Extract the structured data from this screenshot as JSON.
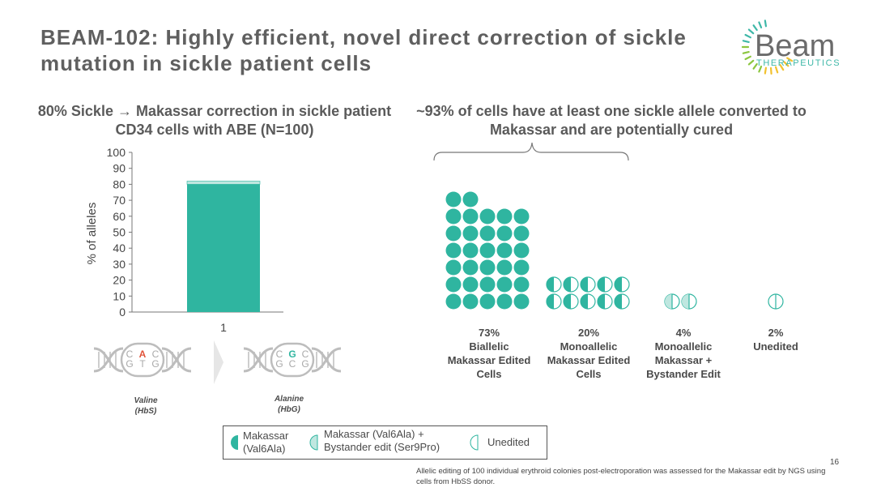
{
  "slide": {
    "title": "BEAM-102: Highly efficient, novel direct correction of sickle mutation in sickle patient cells",
    "page_number": "16",
    "footnote": "Allelic editing of 100 individual erythroid colonies post-electroporation was assessed for the Makassar edit by NGS using cells from HbSS donor."
  },
  "logo": {
    "word": "Beam",
    "sub": "THERAPEUTICS"
  },
  "left_panel": {
    "subtitle": "80% Sickle → Makassar correction in sickle patient CD34 cells with ABE (N=100)"
  },
  "right_panel": {
    "subtitle": "~93% of cells have at least one sickle allele converted to Makassar and are potentially cured"
  },
  "chart_data": [
    {
      "type": "bar",
      "categories": [
        "1"
      ],
      "series": [
        {
          "values": [
            80
          ]
        },
        {
          "values": [
            2
          ]
        }
      ],
      "ylabel": "% of alleles",
      "ylim": [
        0,
        100
      ],
      "yticks": [
        "0",
        "10",
        "20",
        "30",
        "40",
        "50",
        "60",
        "70",
        "80",
        "90",
        "100"
      ],
      "colors": [
        "#2fb5a0",
        "#bfe7e0"
      ]
    },
    {
      "type": "waffle",
      "groups": [
        {
          "pct": "73%",
          "label": "Biallelic Makassar Edited Cells",
          "count": 32,
          "marker": "full"
        },
        {
          "pct": "20%",
          "label": "Monoallelic Makassar Edited Cells",
          "count": 10,
          "marker": "half"
        },
        {
          "pct": "4%",
          "label": "Monoallelic Makassar + Bystander Edit",
          "count": 2,
          "marker": "bystander"
        },
        {
          "pct": "2%",
          "label": "Unedited",
          "count": 1,
          "marker": "unedited"
        }
      ]
    }
  ],
  "dna": {
    "before": {
      "top": [
        "C",
        "A",
        "C"
      ],
      "bottom": [
        "G",
        "T",
        "G"
      ],
      "amino": [
        "Valine",
        "(HbS)"
      ]
    },
    "after": {
      "top": [
        "C",
        "G",
        "C"
      ],
      "bottom": [
        "G",
        "C",
        "G"
      ],
      "amino": [
        "Alanine",
        "(HbG)"
      ]
    }
  },
  "legend": {
    "items": [
      {
        "label_line1": "Makassar",
        "label_line2": "(Val6Ala)"
      },
      {
        "label_line1": "Makassar (Val6Ala) +",
        "label_line2": "Bystander edit (Ser9Pro)"
      },
      {
        "label_line1": "Unedited",
        "label_line2": ""
      }
    ]
  },
  "colors": {
    "teal": "#2fb5a0",
    "light_teal": "#bfe7e0",
    "red_base": "#e0533a"
  }
}
